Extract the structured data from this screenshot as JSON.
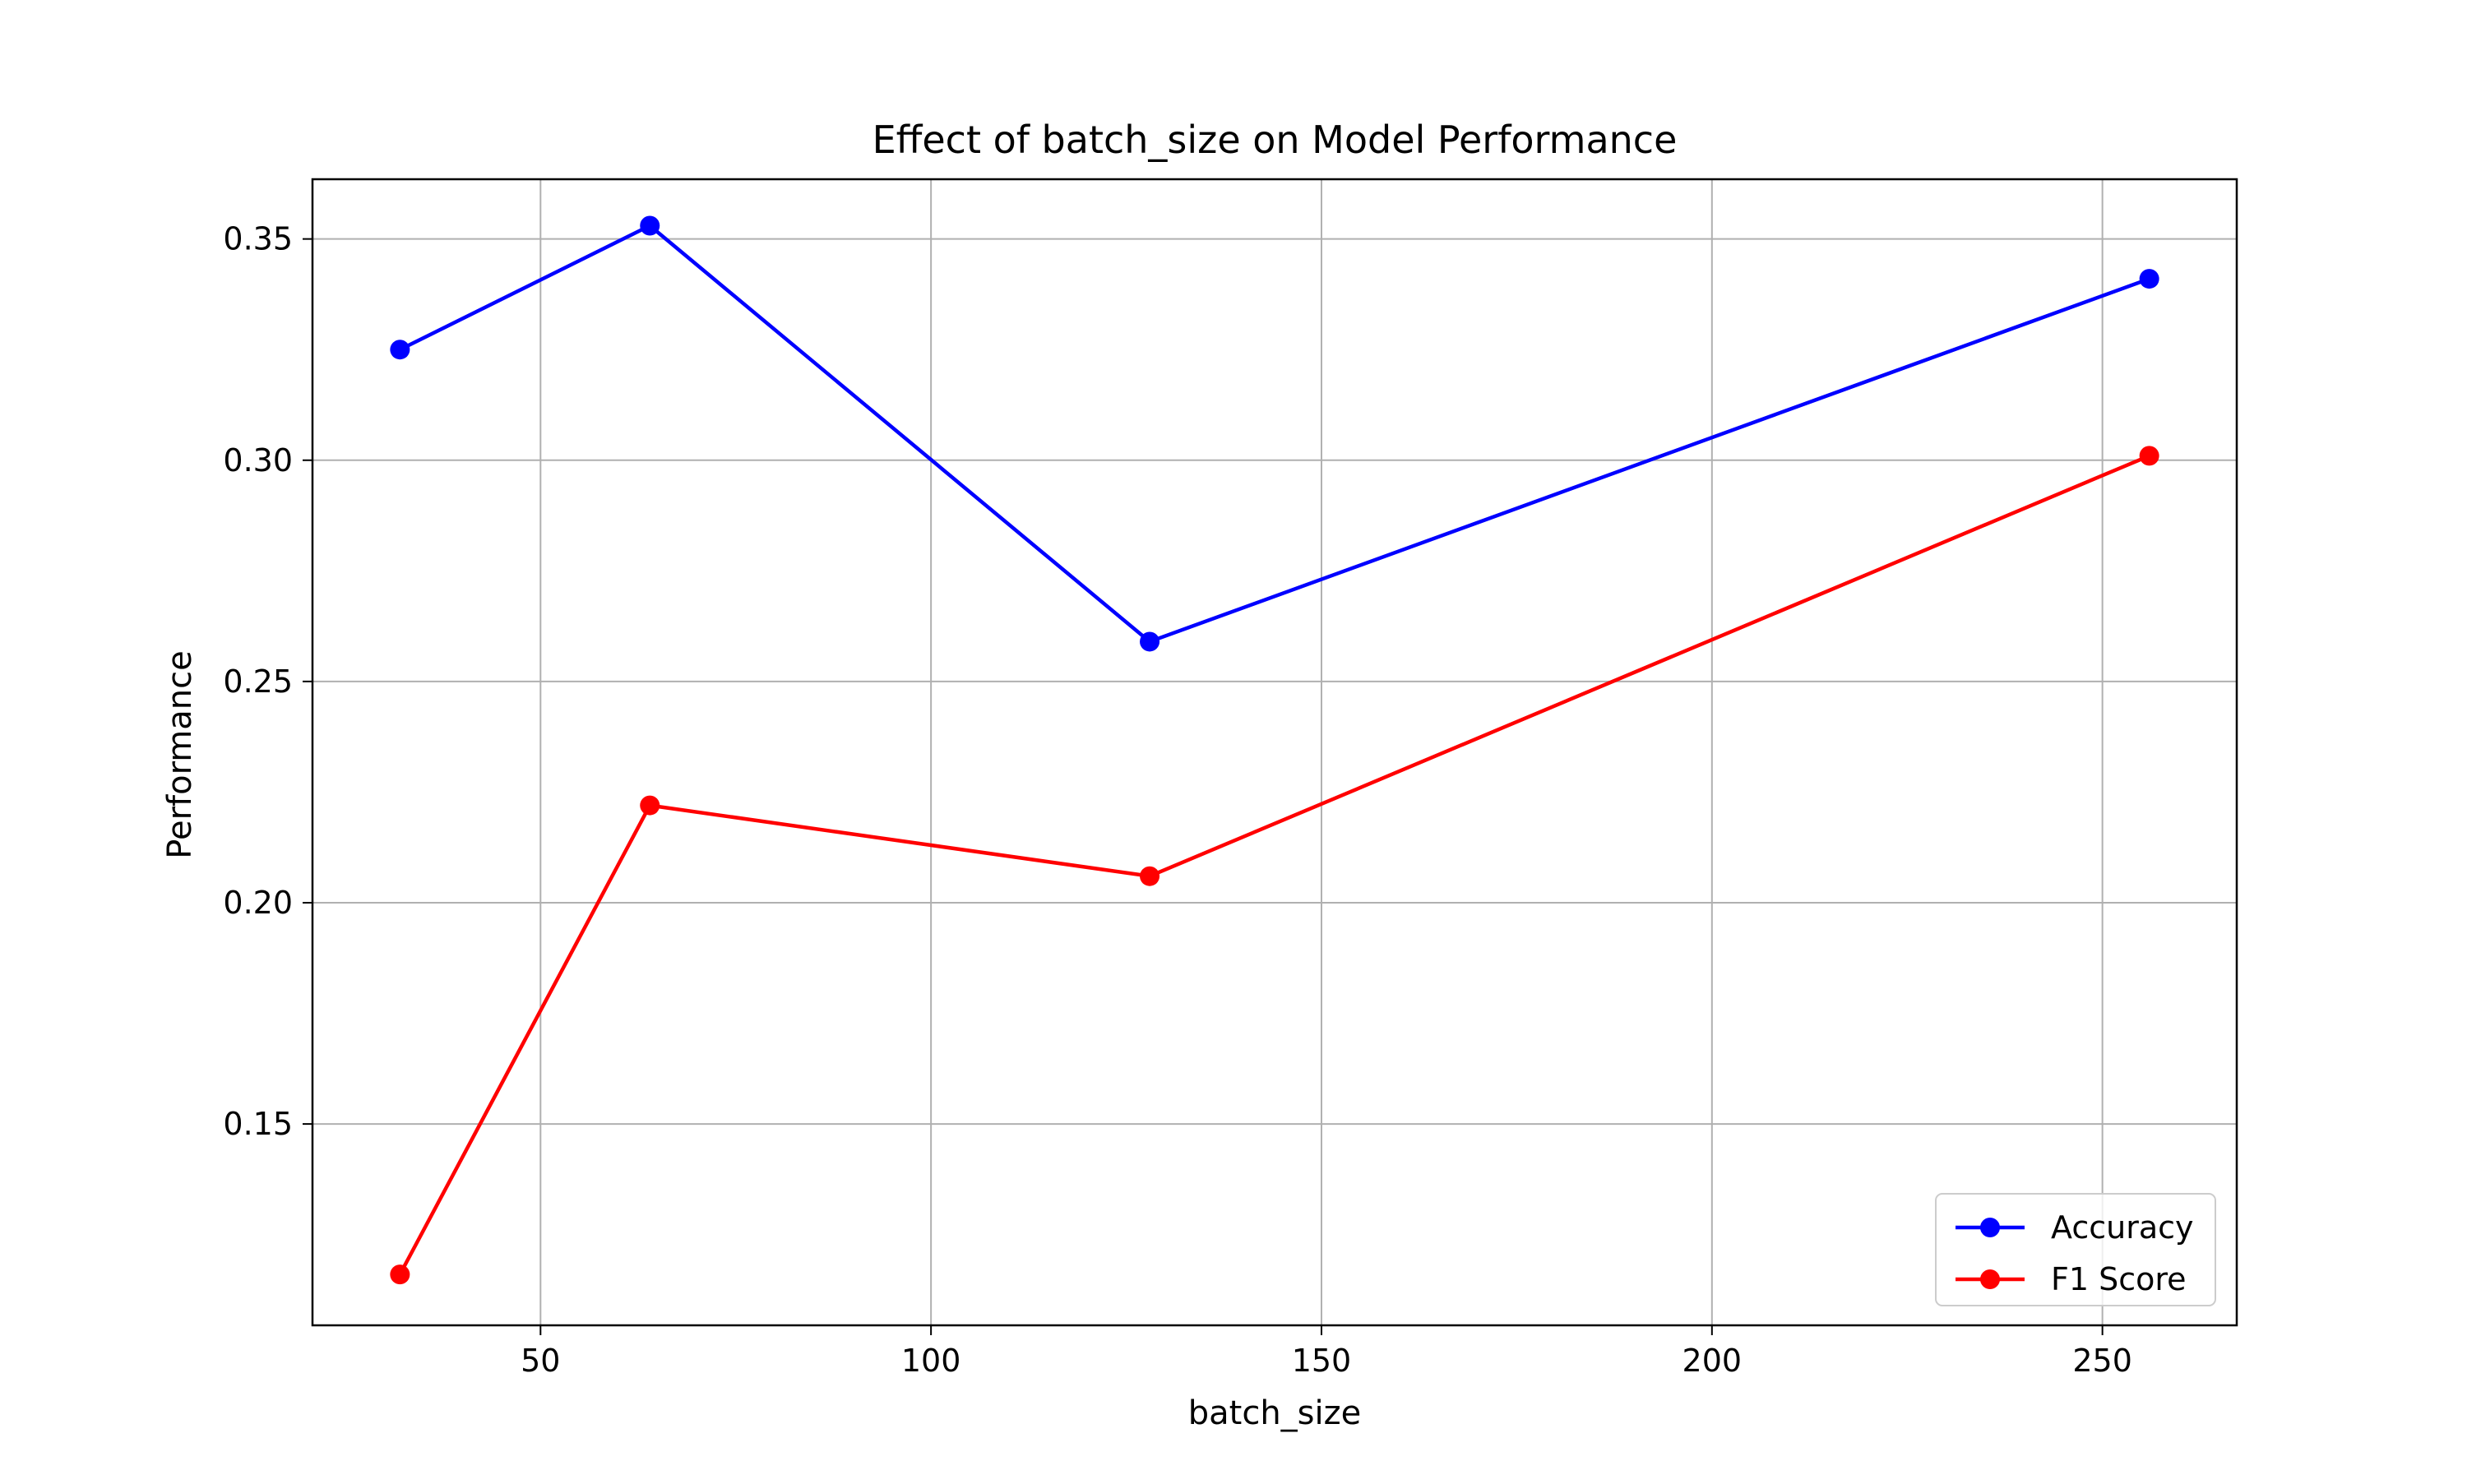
{
  "chart_data": {
    "type": "line",
    "title": "Effect of batch_size on Model Performance",
    "xlabel": "batch_size",
    "ylabel": "Performance",
    "x": [
      32,
      64,
      128,
      256
    ],
    "xlim": [
      20.8,
      267.2
    ],
    "ylim": [
      0.1045,
      0.3635
    ],
    "xticks": [
      50,
      100,
      150,
      200,
      250
    ],
    "xtick_labels": [
      "50",
      "100",
      "150",
      "200",
      "250"
    ],
    "yticks": [
      0.15,
      0.2,
      0.25,
      0.3,
      0.35
    ],
    "ytick_labels": [
      "0.15",
      "0.20",
      "0.25",
      "0.30",
      "0.35"
    ],
    "grid": true,
    "legend_position": "lower-right",
    "series": [
      {
        "name": "Accuracy",
        "color": "#0000ff",
        "marker": "circle",
        "values": [
          0.325,
          0.353,
          0.259,
          0.341
        ]
      },
      {
        "name": "F1 Score",
        "color": "#ff0000",
        "marker": "circle",
        "values": [
          0.116,
          0.222,
          0.206,
          0.301
        ]
      }
    ]
  }
}
